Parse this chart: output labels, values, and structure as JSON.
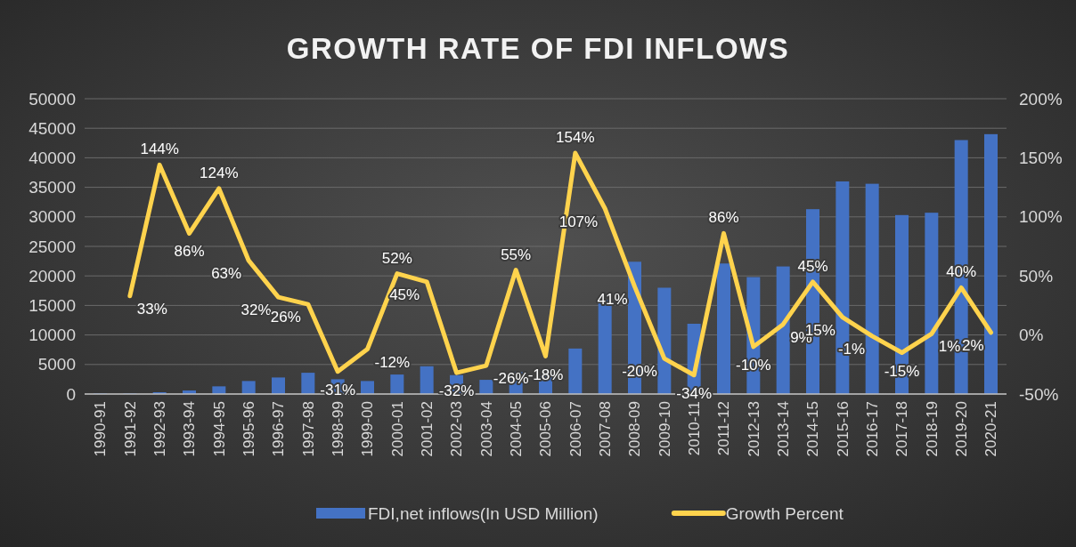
{
  "chart_data": {
    "type": "bar",
    "title": "GROWTH RATE OF FDI INFLOWS",
    "categories": [
      "1990-91",
      "1991-92",
      "1992-93",
      "1993-94",
      "1994-95",
      "1995-96",
      "1996-97",
      "1997-98",
      "1998-99",
      "1999-00",
      "2000-01",
      "2001-02",
      "2002-03",
      "2003-04",
      "2004-05",
      "2005-06",
      "2006-07",
      "2007-08",
      "2008-09",
      "2009-10",
      "2010-11",
      "2011-12",
      "2012-13",
      "2013-14",
      "2014-15",
      "2015-16",
      "2016-17",
      "2017-18",
      "2018-19",
      "2019-20",
      "2020-21"
    ],
    "series": [
      {
        "name": "FDI,net inflows(In USD Million)",
        "color": "#4472c4",
        "values": [
          100,
          100,
          300,
          600,
          1300,
          2200,
          2800,
          3600,
          2500,
          2200,
          3300,
          4700,
          3200,
          2400,
          3700,
          3000,
          7700,
          15900,
          22400,
          18000,
          11900,
          22100,
          19800,
          21600,
          31300,
          36000,
          35600,
          30300,
          30700,
          43000,
          44000
        ]
      },
      {
        "name": "Growth Percent",
        "type": "line",
        "axis": "y2",
        "color": "#ffd34d",
        "values": [
          null,
          33,
          144,
          86,
          124,
          63,
          32,
          26,
          -31,
          -12,
          52,
          45,
          -32,
          -26,
          55,
          -18,
          154,
          107,
          41,
          -20,
          -34,
          86,
          -10,
          9,
          45,
          15,
          -1,
          -15,
          1,
          40,
          2
        ],
        "value_labels": [
          null,
          "33%",
          "144%",
          "86%",
          "124%",
          "63%",
          "32%",
          "26%",
          "-31%",
          "-12%",
          "52%",
          "45%",
          "-32%",
          "-26%",
          "55%",
          "-18%",
          "154%",
          "107%",
          "41%",
          "-20%",
          "-34%",
          "86%",
          "-10%",
          "9%",
          "45%",
          "15%",
          "-1%",
          "-15%",
          "1%",
          "40%",
          "2%"
        ]
      }
    ],
    "ylim": [
      0,
      50000
    ],
    "yticks": [
      0,
      5000,
      10000,
      15000,
      20000,
      25000,
      30000,
      35000,
      40000,
      45000,
      50000
    ],
    "y2lim": [
      -50,
      200
    ],
    "y2ticks": [
      {
        "value": -50,
        "label": "-50%"
      },
      {
        "value": 0,
        "label": "0%"
      },
      {
        "value": 50,
        "label": "50%"
      },
      {
        "value": 100,
        "label": "100%"
      },
      {
        "value": 150,
        "label": "150%"
      },
      {
        "value": 200,
        "label": "200%"
      }
    ],
    "grid": "y",
    "legend": "bottom"
  }
}
